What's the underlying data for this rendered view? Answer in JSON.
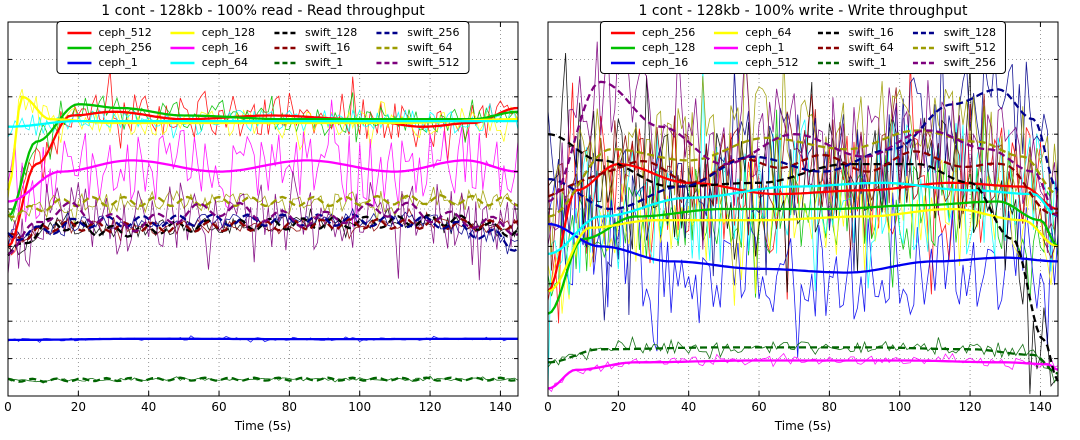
{
  "figure": {
    "background": "#ffffff",
    "note": "two matplotlib-style line charts side by side, y-axis unlabeled (normalized 0-1)"
  },
  "chart_data": [
    {
      "type": "line",
      "title": "1 cont - 128kb - 100% read - Read throughput",
      "xlabel": "Time (5s)",
      "ylabel": "",
      "xlim": [
        0,
        145
      ],
      "xticks": [
        0,
        20,
        40,
        60,
        80,
        100,
        120,
        140
      ],
      "ylim": [
        0,
        1
      ],
      "yticklabels": "none",
      "grid": "dotted",
      "legend": {
        "position": "upper center",
        "columns": 4,
        "rows": 3
      },
      "series": [
        {
          "name": "ceph_512",
          "color": "#ff0000",
          "dash": false,
          "noise_amplitude": 0.055,
          "trend_points": [
            [
              0,
              0.4
            ],
            [
              8,
              0.62
            ],
            [
              18,
              0.75
            ],
            [
              30,
              0.76
            ],
            [
              50,
              0.74
            ],
            [
              75,
              0.75
            ],
            [
              100,
              0.74
            ],
            [
              118,
              0.72
            ],
            [
              132,
              0.73
            ],
            [
              145,
              0.77
            ]
          ]
        },
        {
          "name": "ceph_256",
          "color": "#00c000",
          "dash": false,
          "noise_amplitude": 0.035,
          "trend_points": [
            [
              0,
              0.48
            ],
            [
              8,
              0.68
            ],
            [
              20,
              0.78
            ],
            [
              32,
              0.77
            ],
            [
              50,
              0.75
            ],
            [
              80,
              0.74
            ],
            [
              110,
              0.74
            ],
            [
              132,
              0.74
            ],
            [
              145,
              0.76
            ]
          ]
        },
        {
          "name": "ceph_1",
          "color": "#0000f0",
          "dash": false,
          "noise_amplitude": 0.004,
          "trend_points": [
            [
              0,
              0.15
            ],
            [
              40,
              0.153
            ],
            [
              90,
              0.152
            ],
            [
              145,
              0.153
            ]
          ]
        },
        {
          "name": "ceph_128",
          "color": "#ffff00",
          "dash": false,
          "noise_amplitude": 0.035,
          "trend_points": [
            [
              0,
              0.55
            ],
            [
              4,
              0.8
            ],
            [
              12,
              0.74
            ],
            [
              30,
              0.73
            ],
            [
              70,
              0.73
            ],
            [
              110,
              0.73
            ],
            [
              145,
              0.74
            ]
          ]
        },
        {
          "name": "ceph_16",
          "color": "#ff00ff",
          "dash": false,
          "noise_amplitude": 0.1,
          "trend_points": [
            [
              0,
              0.52
            ],
            [
              15,
              0.6
            ],
            [
              35,
              0.63
            ],
            [
              60,
              0.6
            ],
            [
              85,
              0.63
            ],
            [
              110,
              0.6
            ],
            [
              130,
              0.63
            ],
            [
              145,
              0.6
            ]
          ]
        },
        {
          "name": "ceph_64",
          "color": "#00ffff",
          "dash": false,
          "noise_amplitude": 0.03,
          "trend_points": [
            [
              0,
              0.72
            ],
            [
              20,
              0.735
            ],
            [
              60,
              0.735
            ],
            [
              100,
              0.735
            ],
            [
              145,
              0.735
            ]
          ]
        },
        {
          "name": "swift_128",
          "color": "#000000",
          "dash": true,
          "noise_amplitude": 0.02,
          "wiggle": {
            "amp": 0.015,
            "period": 9
          },
          "trend_points": [
            [
              0,
              0.38
            ],
            [
              12,
              0.46
            ],
            [
              30,
              0.44
            ],
            [
              55,
              0.455
            ],
            [
              80,
              0.46
            ],
            [
              105,
              0.465
            ],
            [
              125,
              0.47
            ],
            [
              145,
              0.44
            ]
          ]
        },
        {
          "name": "swift_16",
          "color": "#8b0000",
          "dash": true,
          "noise_amplitude": 0.02,
          "wiggle": {
            "amp": 0.013,
            "period": 8
          },
          "trend_points": [
            [
              0,
              0.42
            ],
            [
              15,
              0.455
            ],
            [
              40,
              0.45
            ],
            [
              70,
              0.455
            ],
            [
              100,
              0.46
            ],
            [
              125,
              0.46
            ],
            [
              145,
              0.455
            ]
          ]
        },
        {
          "name": "swift_1",
          "color": "#006400",
          "dash": true,
          "noise_amplitude": 0.004,
          "wiggle": {
            "amp": 0.004,
            "period": 7
          },
          "trend_points": [
            [
              0,
              0.042
            ],
            [
              50,
              0.045
            ],
            [
              100,
              0.045
            ],
            [
              145,
              0.045
            ]
          ]
        },
        {
          "name": "swift_256",
          "color": "#00008b",
          "dash": true,
          "noise_amplitude": 0.02,
          "wiggle": {
            "amp": 0.015,
            "period": 10
          },
          "trend_points": [
            [
              0,
              0.43
            ],
            [
              25,
              0.465
            ],
            [
              60,
              0.47
            ],
            [
              95,
              0.47
            ],
            [
              120,
              0.465
            ],
            [
              138,
              0.43
            ],
            [
              145,
              0.4
            ]
          ]
        },
        {
          "name": "swift_64",
          "color": "#9c9c00",
          "dash": true,
          "noise_amplitude": 0.03,
          "wiggle": {
            "amp": 0.012,
            "period": 9
          },
          "trend_points": [
            [
              0,
              0.49
            ],
            [
              20,
              0.52
            ],
            [
              55,
              0.52
            ],
            [
              90,
              0.52
            ],
            [
              120,
              0.525
            ],
            [
              145,
              0.52
            ]
          ]
        },
        {
          "name": "swift_512",
          "color": "#7d007d",
          "dash": true,
          "noise_amplitude": 0.09,
          "wiggle": {
            "amp": 0.02,
            "period": 12
          },
          "trend_points": [
            [
              0,
              0.4
            ],
            [
              15,
              0.5
            ],
            [
              35,
              0.46
            ],
            [
              60,
              0.5
            ],
            [
              85,
              0.47
            ],
            [
              110,
              0.5
            ],
            [
              130,
              0.47
            ],
            [
              145,
              0.45
            ]
          ]
        }
      ]
    },
    {
      "type": "line",
      "title": "1 cont - 128kb - 100% write - Write throughput",
      "xlabel": "Time (5s)",
      "ylabel": "",
      "xlim": [
        0,
        145
      ],
      "xticks": [
        0,
        20,
        40,
        60,
        80,
        100,
        120,
        140
      ],
      "ylim": [
        0,
        1
      ],
      "yticklabels": "none",
      "grid": "dotted",
      "legend": {
        "position": "upper center",
        "columns": 4,
        "rows": 3
      },
      "series": [
        {
          "name": "ceph_256",
          "color": "#ff0000",
          "dash": false,
          "noise_amplitude": 0.16,
          "trend_points": [
            [
              0,
              0.28
            ],
            [
              8,
              0.55
            ],
            [
              20,
              0.62
            ],
            [
              40,
              0.57
            ],
            [
              65,
              0.54
            ],
            [
              90,
              0.55
            ],
            [
              115,
              0.57
            ],
            [
              135,
              0.56
            ],
            [
              145,
              0.5
            ]
          ]
        },
        {
          "name": "ceph_128",
          "color": "#00c000",
          "dash": false,
          "noise_amplitude": 0.13,
          "trend_points": [
            [
              0,
              0.22
            ],
            [
              10,
              0.42
            ],
            [
              25,
              0.48
            ],
            [
              50,
              0.5
            ],
            [
              80,
              0.5
            ],
            [
              105,
              0.51
            ],
            [
              128,
              0.52
            ],
            [
              140,
              0.47
            ],
            [
              145,
              0.4
            ]
          ]
        },
        {
          "name": "ceph_16",
          "color": "#0000f0",
          "dash": false,
          "noise_amplitude": 0.14,
          "trend_points": [
            [
              0,
              0.46
            ],
            [
              15,
              0.4
            ],
            [
              35,
              0.36
            ],
            [
              60,
              0.34
            ],
            [
              85,
              0.33
            ],
            [
              110,
              0.36
            ],
            [
              130,
              0.37
            ],
            [
              145,
              0.36
            ]
          ]
        },
        {
          "name": "ceph_64",
          "color": "#ffff00",
          "dash": false,
          "noise_amplitude": 0.11,
          "trend_points": [
            [
              0,
              0.28
            ],
            [
              12,
              0.45
            ],
            [
              30,
              0.47
            ],
            [
              60,
              0.47
            ],
            [
              90,
              0.48
            ],
            [
              115,
              0.5
            ],
            [
              135,
              0.47
            ],
            [
              145,
              0.4
            ]
          ]
        },
        {
          "name": "ceph_1",
          "color": "#ff00ff",
          "dash": false,
          "noise_amplitude": 0.012,
          "trend_points": [
            [
              0,
              0.02
            ],
            [
              8,
              0.07
            ],
            [
              25,
              0.09
            ],
            [
              60,
              0.095
            ],
            [
              100,
              0.095
            ],
            [
              130,
              0.09
            ],
            [
              142,
              0.085
            ],
            [
              145,
              0.07
            ]
          ]
        },
        {
          "name": "ceph_512",
          "color": "#00ffff",
          "dash": false,
          "noise_amplitude": 0.18,
          "trend_points": [
            [
              0,
              0.38
            ],
            [
              15,
              0.48
            ],
            [
              40,
              0.53
            ],
            [
              70,
              0.56
            ],
            [
              95,
              0.57
            ],
            [
              120,
              0.55
            ],
            [
              138,
              0.54
            ],
            [
              145,
              0.48
            ]
          ]
        },
        {
          "name": "swift_16",
          "color": "#000000",
          "dash": true,
          "noise_amplitude": 0.15,
          "trend_points": [
            [
              0,
              0.7
            ],
            [
              15,
              0.63
            ],
            [
              35,
              0.56
            ],
            [
              60,
              0.57
            ],
            [
              85,
              0.62
            ],
            [
              105,
              0.62
            ],
            [
              120,
              0.57
            ],
            [
              132,
              0.42
            ],
            [
              141,
              0.15
            ],
            [
              145,
              0.04
            ]
          ]
        },
        {
          "name": "swift_64",
          "color": "#8b0000",
          "dash": true,
          "noise_amplitude": 0.12,
          "wiggle": {
            "amp": 0.02,
            "period": 25
          },
          "trend_points": [
            [
              0,
              0.52
            ],
            [
              18,
              0.62
            ],
            [
              40,
              0.59
            ],
            [
              65,
              0.63
            ],
            [
              90,
              0.62
            ],
            [
              112,
              0.64
            ],
            [
              130,
              0.6
            ],
            [
              145,
              0.5
            ]
          ]
        },
        {
          "name": "swift_1",
          "color": "#006400",
          "dash": true,
          "noise_amplitude": 0.015,
          "trend_points": [
            [
              0,
              0.09
            ],
            [
              15,
              0.125
            ],
            [
              50,
              0.13
            ],
            [
              90,
              0.13
            ],
            [
              120,
              0.125
            ],
            [
              138,
              0.11
            ],
            [
              145,
              0.06
            ]
          ]
        },
        {
          "name": "swift_128",
          "color": "#00008b",
          "dash": true,
          "noise_amplitude": 0.16,
          "trend_points": [
            [
              0,
              0.58
            ],
            [
              18,
              0.5
            ],
            [
              38,
              0.56
            ],
            [
              58,
              0.64
            ],
            [
              78,
              0.6
            ],
            [
              98,
              0.66
            ],
            [
              115,
              0.78
            ],
            [
              128,
              0.82
            ],
            [
              138,
              0.74
            ],
            [
              145,
              0.55
            ]
          ]
        },
        {
          "name": "swift_512",
          "color": "#9c9c00",
          "dash": true,
          "noise_amplitude": 0.14,
          "trend_points": [
            [
              0,
              0.48
            ],
            [
              18,
              0.66
            ],
            [
              40,
              0.63
            ],
            [
              62,
              0.69
            ],
            [
              85,
              0.66
            ],
            [
              105,
              0.71
            ],
            [
              122,
              0.68
            ],
            [
              135,
              0.64
            ],
            [
              145,
              0.54
            ]
          ]
        },
        {
          "name": "swift_256",
          "color": "#7d007d",
          "dash": true,
          "noise_amplitude": 0.15,
          "trend_points": [
            [
              0,
              0.52
            ],
            [
              15,
              0.84
            ],
            [
              32,
              0.72
            ],
            [
              50,
              0.62
            ],
            [
              70,
              0.7
            ],
            [
              90,
              0.64
            ],
            [
              108,
              0.71
            ],
            [
              125,
              0.66
            ],
            [
              138,
              0.6
            ],
            [
              145,
              0.48
            ]
          ]
        }
      ]
    }
  ]
}
